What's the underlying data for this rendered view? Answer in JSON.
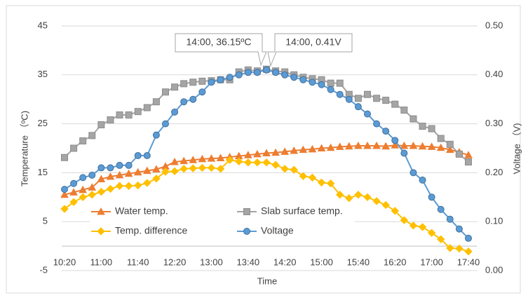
{
  "chart_data": {
    "type": "line",
    "xlabel": "Time",
    "ylabel": "Temperature （ºC)",
    "y2label": "Voltage （V)",
    "categories": [
      "10:20",
      null,
      null,
      null,
      "11:00",
      null,
      null,
      null,
      "11:40",
      null,
      null,
      null,
      "12:20",
      null,
      null,
      null,
      "13:00",
      null,
      null,
      null,
      "13:40",
      null,
      null,
      null,
      "14:20",
      null,
      null,
      null,
      "15:00",
      null,
      null,
      null,
      "15:40",
      null,
      null,
      null,
      "16:20",
      null,
      null,
      null,
      "17:00",
      null,
      null,
      null,
      "17:40"
    ],
    "series": [
      {
        "name": "Water temp.",
        "color": "#ed7d31",
        "marker": "triangle",
        "values": [
          10.5,
          11,
          11.5,
          12,
          13.7,
          14.2,
          14.5,
          14.8,
          15.1,
          15.4,
          15.7,
          16.3,
          17.2,
          17.4,
          17.6,
          17.8,
          17.9,
          18,
          18.2,
          18.4,
          18.6,
          18.8,
          19,
          19.1,
          19.3,
          19.5,
          19.7,
          19.8,
          20,
          20.1,
          20.3,
          20.4,
          20.5,
          20.5,
          20.5,
          20.4,
          20.6,
          20.5,
          20.5,
          20.4,
          20.3,
          20.1,
          19.7,
          19.2,
          18.6
        ]
      },
      {
        "name": "Slab surface temp.",
        "color": "#a5a5a5",
        "marker": "square",
        "values": [
          18.1,
          20,
          21.5,
          22.6,
          24.8,
          25.8,
          26.8,
          26.8,
          27.5,
          28.3,
          29.5,
          31.5,
          32.5,
          33.2,
          33.5,
          33.7,
          33.8,
          34,
          34,
          35.6,
          36,
          35.8,
          36.15,
          35.8,
          35.6,
          35,
          34.5,
          34.2,
          34,
          33.3,
          33.3,
          31,
          30.2,
          31,
          30.2,
          29.8,
          29,
          27.8,
          26,
          24.5,
          24,
          22,
          20.8,
          18.8,
          17.2
        ]
      },
      {
        "name": "Temp. difference",
        "color": "#ffc000",
        "marker": "diamond",
        "values": [
          7.6,
          9,
          10,
          10.5,
          11.1,
          11.7,
          12.3,
          12.3,
          12.4,
          12.9,
          13.8,
          15.2,
          15.3,
          15.8,
          15.9,
          16,
          16,
          15.8,
          17.6,
          17.3,
          17.1,
          17.1,
          17.1,
          16.6,
          15.8,
          15.6,
          14.3,
          14,
          13,
          12.8,
          10.5,
          9.8,
          10.5,
          10,
          9.2,
          8.4,
          7.2,
          5.3,
          4.2,
          3.9,
          2.7,
          1.4,
          -0.4,
          -0.5,
          -1.1
        ]
      },
      {
        "name": "Voltage",
        "color": "#5b9bd5",
        "marker": "circle",
        "axis": "y2",
        "values": [
          0.166,
          0.178,
          0.19,
          0.195,
          0.21,
          0.21,
          0.215,
          0.215,
          0.235,
          0.235,
          0.277,
          0.3,
          0.324,
          0.345,
          0.35,
          0.365,
          0.385,
          0.39,
          0.395,
          0.4,
          0.405,
          0.405,
          0.41,
          0.405,
          0.4,
          0.395,
          0.39,
          0.385,
          0.38,
          0.37,
          0.36,
          0.35,
          0.335,
          0.32,
          0.3,
          0.285,
          0.266,
          0.24,
          0.2,
          0.185,
          0.15,
          0.125,
          0.105,
          0.085,
          0.066
        ]
      }
    ],
    "annotations": [
      "14:00, 36.15ºC",
      "14:00, 0.41V"
    ],
    "ylim": [
      -5,
      45
    ],
    "yticks": [
      -5,
      5,
      15,
      25,
      35,
      45
    ],
    "y2lim": [
      0,
      0.5
    ],
    "y2ticks": [
      {
        "value": 0,
        "label": "0.00"
      },
      {
        "value": 0.1,
        "label": "0.10"
      },
      {
        "value": 0.2,
        "label": "0.20"
      },
      {
        "value": 0.3,
        "label": "0.30"
      },
      {
        "value": 0.4,
        "label": "0.40"
      },
      {
        "value": 0.5,
        "label": "0.50"
      }
    ],
    "grid": true
  }
}
